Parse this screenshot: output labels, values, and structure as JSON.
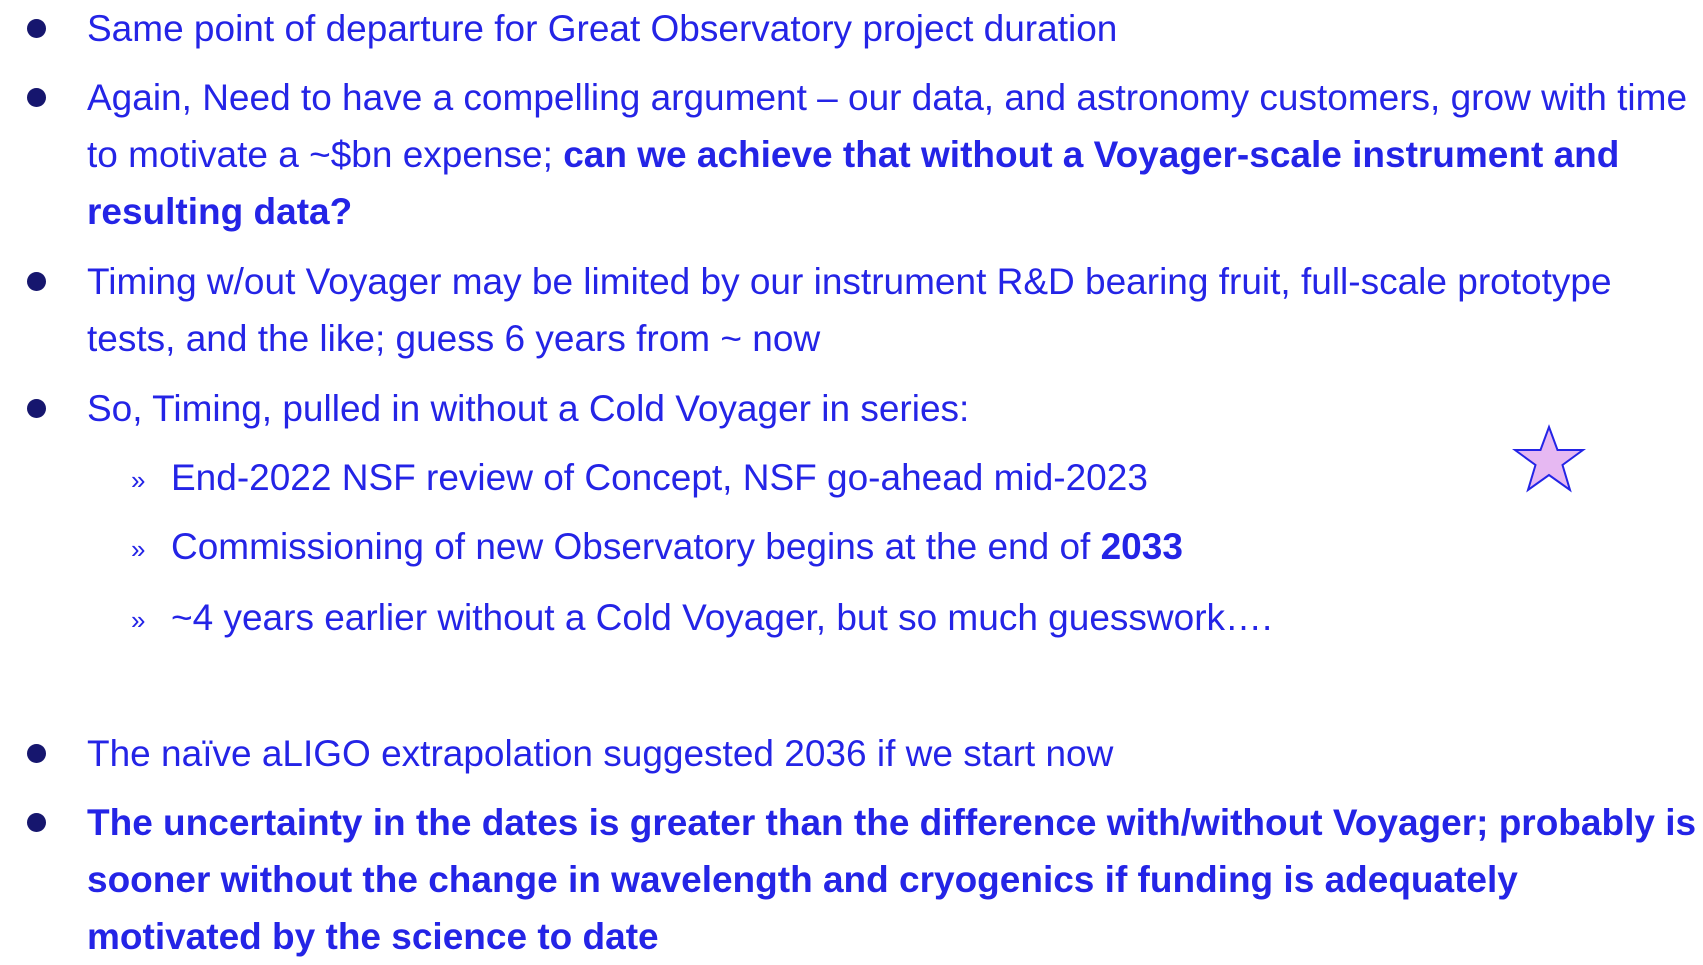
{
  "bullets": [
    {
      "level": 1,
      "runs": [
        {
          "text": "Same point of departure for Great Observatory project duration",
          "bold": false
        }
      ]
    },
    {
      "level": 1,
      "runs": [
        {
          "text": "Again, Need to have a compelling argument – our data, and astronomy customers,  grow with time to motivate a ~$bn expense; ",
          "bold": false
        },
        {
          "text": "can we achieve that without a Voyager-scale instrument and resulting data?",
          "bold": true
        }
      ]
    },
    {
      "level": 1,
      "runs": [
        {
          "text": "Timing w/out Voyager may be limited by our instrument R&D bearing fruit, full-scale prototype tests, and the like; guess 6 years from ~ now",
          "bold": false
        }
      ]
    },
    {
      "level": 1,
      "runs": [
        {
          "text": "So, Timing, pulled in without a Cold Voyager in series:",
          "bold": false
        }
      ]
    },
    {
      "level": 2,
      "marker": "»",
      "runs": [
        {
          "text": "End-2022  NSF review of Concept, NSF go-ahead mid-2023",
          "bold": false
        }
      ]
    },
    {
      "level": 2,
      "marker": "»",
      "runs": [
        {
          "text": "Commissioning of new Observatory begins at the end of ",
          "bold": false
        },
        {
          "text": "2033",
          "bold": true
        }
      ]
    },
    {
      "level": 2,
      "marker": "»",
      "runs": [
        {
          "text": "~4 years earlier without a Cold Voyager, but so much guesswork….",
          "bold": false
        }
      ]
    },
    {
      "level": 1,
      "runs": [
        {
          "text": "The naïve aLIGO extrapolation suggested 2036 if we start now",
          "bold": false
        }
      ]
    },
    {
      "level": 1,
      "runs": [
        {
          "text": "The uncertainty in the dates is greater than the difference with/without Voyager; probably is sooner without the change in wavelength and cryogenics if funding is adequately motivated by the science to date",
          "bold": true
        }
      ]
    }
  ]
}
